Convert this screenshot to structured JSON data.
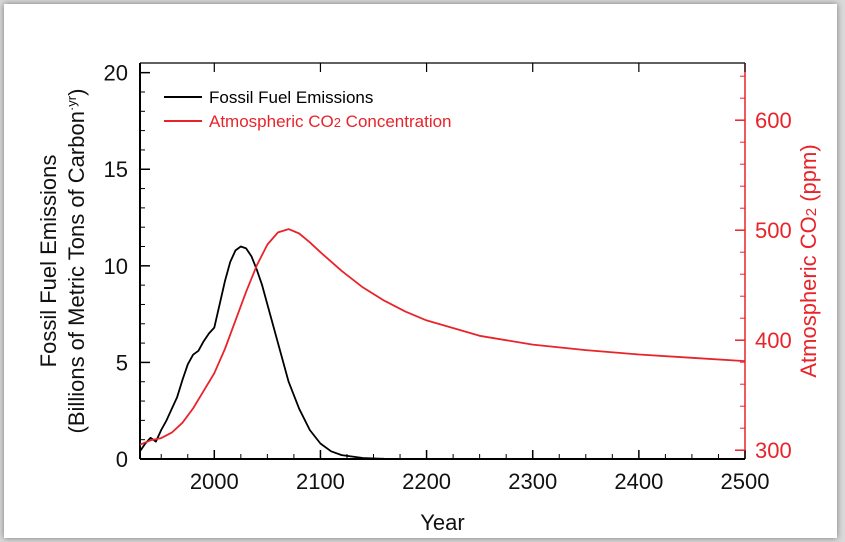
{
  "chart_data": {
    "type": "line",
    "xlabel": "Year",
    "ylabel_lines": [
      "Fossil Fuel Emissions",
      "(Billions of Metric Tons of Carbon",
      "·yr",
      ")"
    ],
    "y2label": [
      "Atmospheric CO",
      "2",
      " (ppm)"
    ],
    "xlim": [
      1930,
      2500
    ],
    "ylim": [
      0,
      20.5
    ],
    "y2lim": [
      292,
      652
    ],
    "x_ticks": [
      2000,
      2100,
      2200,
      2300,
      2400,
      2500
    ],
    "y_ticks": [
      0,
      5,
      10,
      15,
      20
    ],
    "y2_ticks": [
      300,
      400,
      500,
      600
    ],
    "legend_position": "top-left",
    "colors": {
      "emissions": "#000000",
      "co2": "#e8242a"
    },
    "series": [
      {
        "name": "Fossil Fuel Emissions",
        "axis": "left",
        "x": [
          1930,
          1935,
          1940,
          1945,
          1950,
          1955,
          1960,
          1965,
          1970,
          1975,
          1980,
          1985,
          1990,
          1995,
          2000,
          2005,
          2010,
          2015,
          2020,
          2025,
          2030,
          2035,
          2040,
          2045,
          2050,
          2060,
          2070,
          2080,
          2090,
          2100,
          2110,
          2120,
          2140,
          2160,
          2180,
          2200
        ],
        "y": [
          0.4,
          0.8,
          1.1,
          0.9,
          1.5,
          2.0,
          2.6,
          3.2,
          4.1,
          4.9,
          5.4,
          5.6,
          6.1,
          6.5,
          6.8,
          8.0,
          9.2,
          10.2,
          10.8,
          11.0,
          10.9,
          10.5,
          9.8,
          9.0,
          8.0,
          6.0,
          4.0,
          2.6,
          1.5,
          0.8,
          0.4,
          0.2,
          0.05,
          0.01,
          0.0,
          0.0
        ]
      },
      {
        "name": "Atmospheric CO2 Concentration",
        "axis": "right",
        "x": [
          1930,
          1940,
          1950,
          1960,
          1970,
          1980,
          1990,
          2000,
          2010,
          2020,
          2030,
          2040,
          2050,
          2060,
          2070,
          2080,
          2090,
          2100,
          2120,
          2140,
          2160,
          2180,
          2200,
          2250,
          2300,
          2350,
          2400,
          2450,
          2500
        ],
        "y": [
          305,
          309,
          311,
          316,
          325,
          338,
          354,
          370,
          392,
          418,
          444,
          468,
          487,
          498,
          501,
          497,
          489,
          480,
          463,
          448,
          436,
          426,
          418,
          404,
          396,
          391,
          387,
          384,
          381
        ]
      }
    ],
    "legend": [
      {
        "label": "Fossil Fuel Emissions",
        "color": "#000000"
      },
      {
        "label_parts": [
          "Atmospheric CO",
          "2",
          " Concentration"
        ],
        "color": "#e8242a"
      }
    ]
  }
}
